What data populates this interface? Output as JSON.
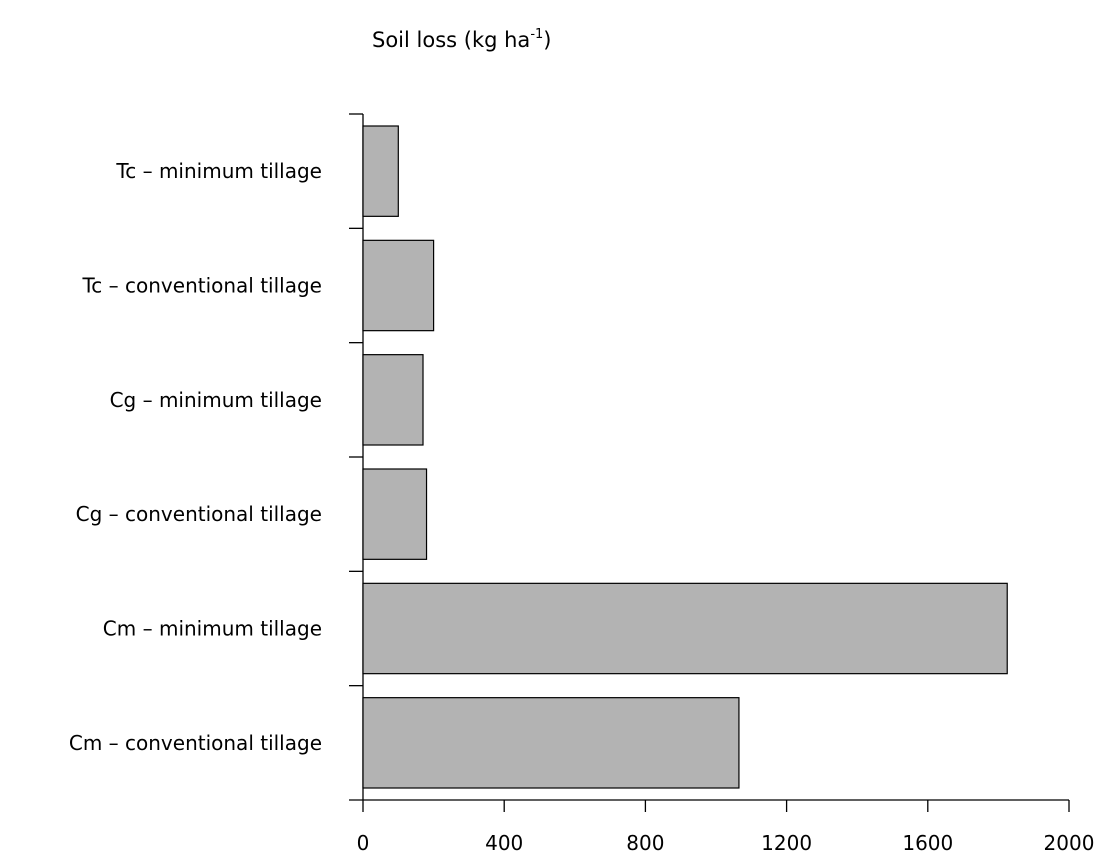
{
  "chart_data": {
    "type": "bar",
    "orientation": "horizontal",
    "title": {
      "prefix": "Soil loss (kg ha",
      "superscript": "-1",
      "suffix": ")"
    },
    "categories": [
      "Tc – minimum tillage",
      "Tc – conventional tillage",
      "Cg – minimum tillage",
      "Cg – conventional tillage",
      "Cm – minimum tillage",
      "Cm – conventional tillage"
    ],
    "values": [
      100,
      200,
      170,
      180,
      1825,
      1065
    ],
    "xlim": [
      0,
      2000
    ],
    "xticks": [
      0,
      400,
      800,
      1200,
      1600,
      2000
    ],
    "xlabel": "",
    "ylabel": "",
    "grid": false,
    "legend": "none",
    "colors": {
      "bar_fill": "#b3b3b3",
      "bar_stroke": "#000000",
      "axis": "#000000"
    }
  }
}
